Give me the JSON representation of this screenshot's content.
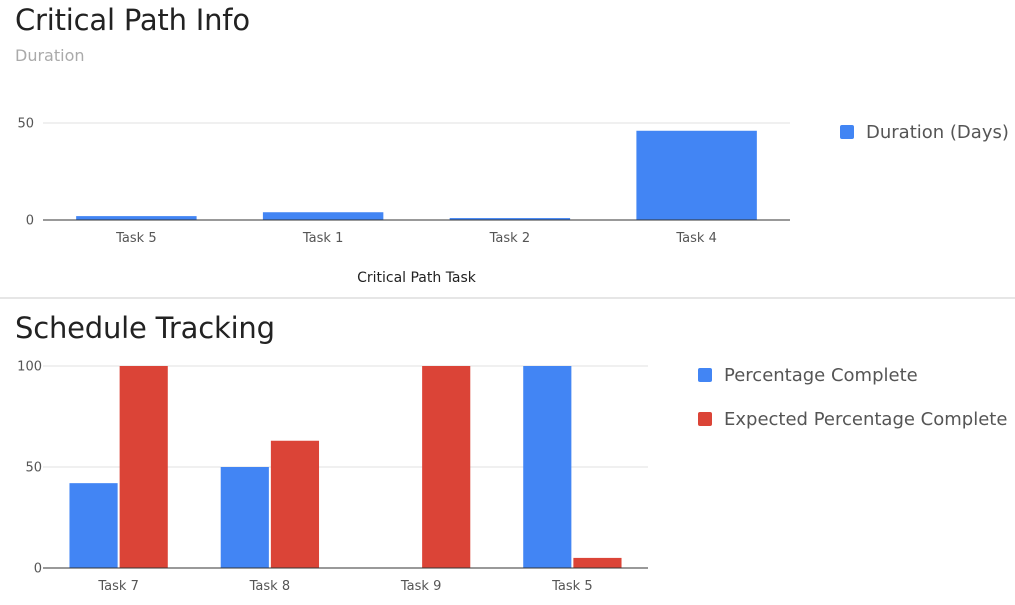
{
  "chart_data": [
    {
      "type": "bar",
      "title": "Critical Path Info",
      "subtitle": "Duration",
      "xlabel": "Critical Path Task",
      "ylabel": "",
      "categories": [
        "Task 5",
        "Task 1",
        "Task 2",
        "Task 4"
      ],
      "series": [
        {
          "name": "Duration (Days)",
          "color": "#4285f4",
          "values": [
            2,
            4,
            1,
            46
          ]
        }
      ],
      "ylim": [
        0,
        50
      ],
      "yticks": [
        0,
        50
      ],
      "grid": true,
      "legend": "right"
    },
    {
      "type": "bar",
      "title": "Schedule Tracking",
      "xlabel": "",
      "ylabel": "",
      "categories": [
        "Task 7",
        "Task 8",
        "Task 9",
        "Task 5"
      ],
      "series": [
        {
          "name": "Percentage Complete",
          "color": "#4285f4",
          "values": [
            42,
            50,
            0,
            100
          ]
        },
        {
          "name": "Expected Percentage Complete",
          "color": "#db4437",
          "values": [
            100,
            63,
            100,
            5
          ]
        }
      ],
      "ylim": [
        0,
        100
      ],
      "yticks": [
        0,
        50,
        100
      ],
      "grid": true,
      "legend": "right"
    }
  ]
}
